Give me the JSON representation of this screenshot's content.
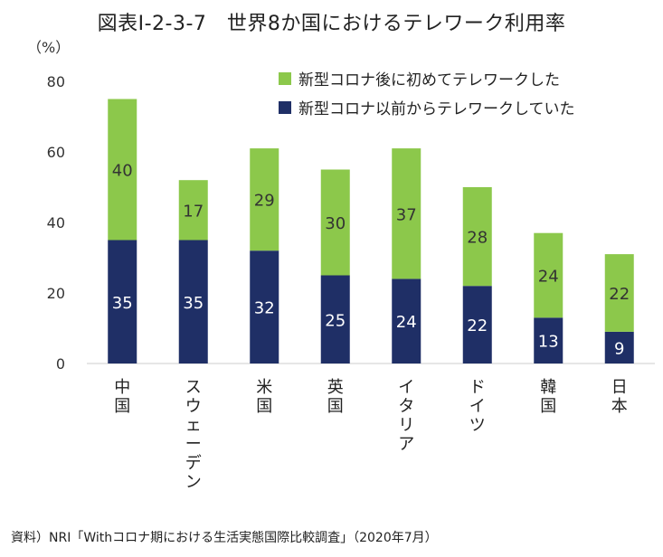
{
  "title": "図表Ⅰ-2-3-7　世界8か国におけるテレワーク利用率",
  "source": "資料）NRI「Withコロナ期における生活実態国際比較調査」（2020年7月）",
  "chart_data": {
    "type": "bar",
    "stacked": true,
    "y_unit_label": "（%）",
    "ylim": [
      0,
      80
    ],
    "yticks": [
      0,
      20,
      40,
      60,
      80
    ],
    "grid": false,
    "legend_position": "top-right",
    "categories": [
      "中国",
      "スウェーデン",
      "米国",
      "英国",
      "イタリア",
      "ドイツ",
      "韓国",
      "日本"
    ],
    "series": [
      {
        "name": "新型コロナ以前からテレワークしていた",
        "color": "#1f2f66",
        "label_color": "#ffffff",
        "values": [
          35,
          35,
          32,
          25,
          24,
          22,
          13,
          9
        ]
      },
      {
        "name": "新型コロナ後に初めてテレワークした",
        "color": "#8cc84b",
        "label_color": "#333333",
        "values": [
          40,
          17,
          29,
          30,
          37,
          28,
          24,
          22
        ]
      }
    ],
    "legend_order": [
      1,
      0
    ]
  }
}
